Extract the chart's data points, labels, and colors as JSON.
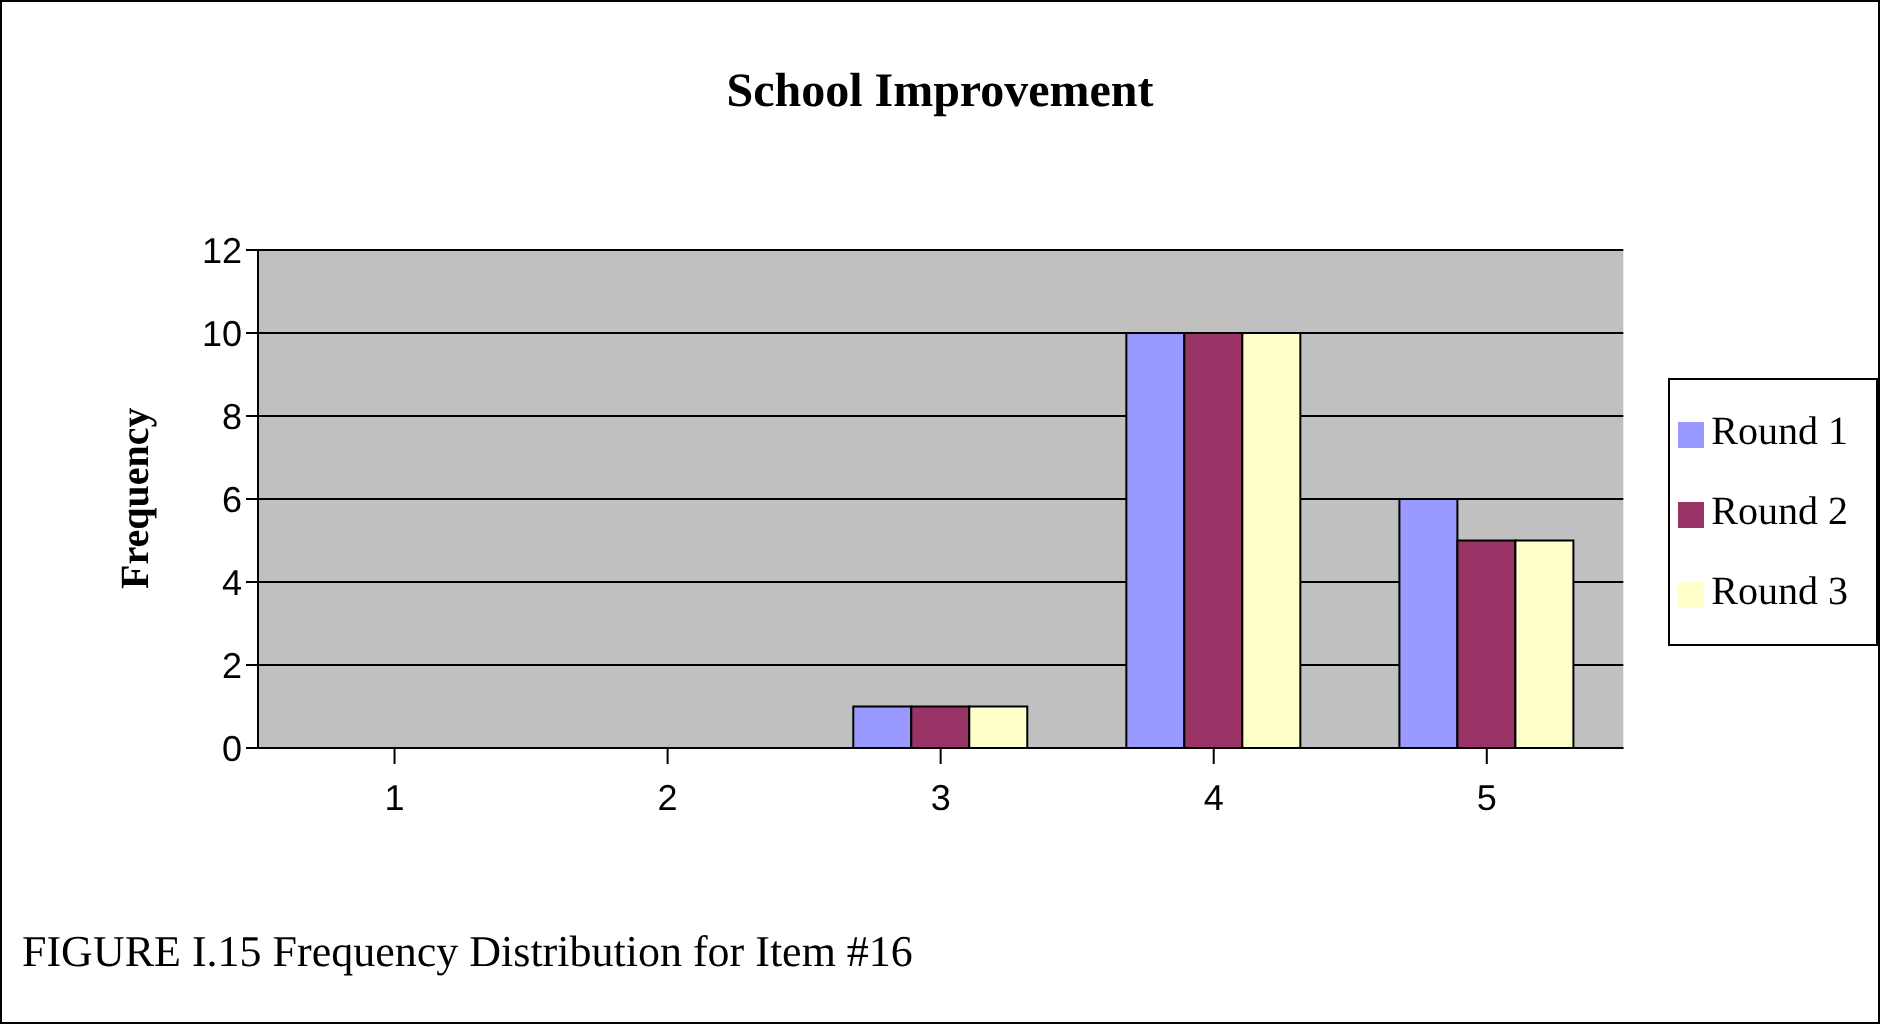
{
  "chart_data": {
    "type": "bar",
    "title": "School Improvement",
    "ylabel": "Frequency",
    "categories": [
      "1",
      "2",
      "3",
      "4",
      "5"
    ],
    "series": [
      {
        "name": "Round 1",
        "color": "#9999ff",
        "values": [
          0,
          0,
          1,
          10,
          6
        ]
      },
      {
        "name": "Round 2",
        "color": "#993366",
        "values": [
          0,
          0,
          1,
          10,
          5
        ]
      },
      {
        "name": "Round 3",
        "color": "#ffffcc",
        "values": [
          0,
          0,
          1,
          10,
          5
        ]
      }
    ],
    "ylim": [
      0,
      12
    ],
    "yticks": [
      0,
      2,
      4,
      6,
      8,
      10,
      12
    ],
    "grid": "y",
    "legend": "right",
    "annotations": [
      "FIGURE I.15 Frequency Distribution for Item #16"
    ]
  }
}
